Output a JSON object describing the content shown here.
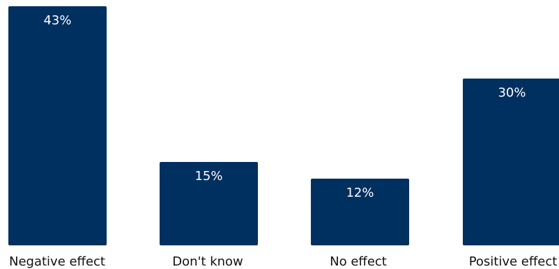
{
  "chart_data": {
    "type": "bar",
    "categories": [
      "Negative effect",
      "Don't know",
      "No effect",
      "Positive effect"
    ],
    "values": [
      43,
      15,
      12,
      30
    ],
    "value_labels": [
      "43%",
      "15%",
      "12%",
      "30%"
    ],
    "title": "",
    "xlabel": "",
    "ylabel": "",
    "ylim": [
      0,
      43
    ],
    "grid": false,
    "legend": "none",
    "bar_color": "#00305f"
  }
}
